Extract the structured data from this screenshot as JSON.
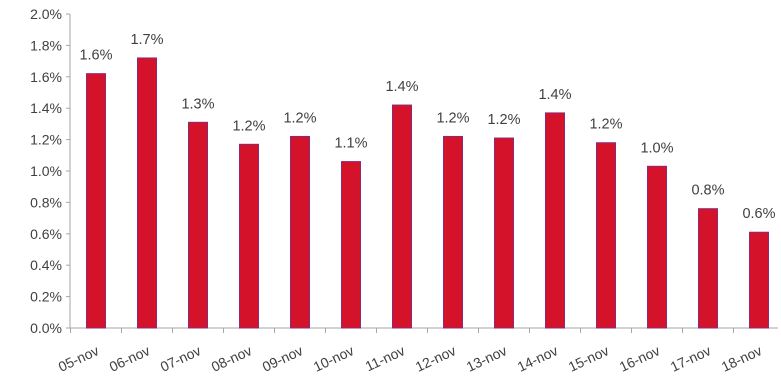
{
  "chart_data": {
    "type": "bar",
    "categories": [
      "05-nov",
      "06-nov",
      "07-nov",
      "08-nov",
      "09-nov",
      "10-nov",
      "11-nov",
      "12-nov",
      "13-nov",
      "14-nov",
      "15-nov",
      "16-nov",
      "17-nov",
      "18-nov"
    ],
    "values": [
      1.62,
      1.72,
      1.31,
      1.17,
      1.22,
      1.06,
      1.42,
      1.22,
      1.21,
      1.37,
      1.18,
      1.03,
      0.76,
      0.61
    ],
    "data_labels": [
      "1.6%",
      "1.7%",
      "1.3%",
      "1.2%",
      "1.2%",
      "1.1%",
      "1.4%",
      "1.2%",
      "1.2%",
      "1.4%",
      "1.2%",
      "1.0%",
      "0.8%",
      "0.6%"
    ],
    "y_ticks": [
      "0.0%",
      "0.2%",
      "0.4%",
      "0.6%",
      "0.8%",
      "1.0%",
      "1.2%",
      "1.4%",
      "1.6%",
      "1.8%",
      "2.0%"
    ],
    "ylim": [
      0,
      2.0
    ],
    "y_unit": "%",
    "grid": false,
    "legend": "none",
    "title": "",
    "xlabel": "",
    "ylabel": "",
    "colors": {
      "bar": "#d4132b",
      "bar_edge": "#8a2a78",
      "axis": "#a6a6a6",
      "text": "#404040"
    }
  }
}
